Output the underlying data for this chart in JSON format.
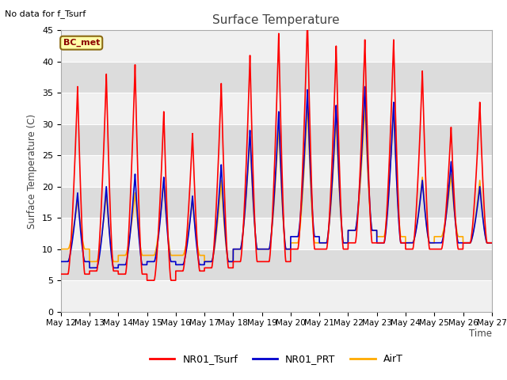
{
  "title": "Surface Temperature",
  "ylabel": "Surface Temperature (C)",
  "xlabel": "Time",
  "note": "No data for f_Tsurf",
  "annotation": "BC_met",
  "ylim": [
    0,
    45
  ],
  "yticks": [
    0,
    5,
    10,
    15,
    20,
    25,
    30,
    35,
    40,
    45
  ],
  "bg_color": "#dcdcdc",
  "plot_bg_color": "#dcdcdc",
  "series": {
    "NR01_Tsurf": {
      "color": "#ff0000",
      "lw": 1.2
    },
    "NR01_PRT": {
      "color": "#0000cc",
      "lw": 1.2
    },
    "AirT": {
      "color": "#ffaa00",
      "lw": 1.2
    }
  },
  "legend_colors": [
    "#ff0000",
    "#0000cc",
    "#ffaa00"
  ],
  "legend_labels": [
    "NR01_Tsurf",
    "NR01_PRT",
    "AirT"
  ],
  "xtick_labels": [
    "May 12",
    "May 13",
    "May 14",
    "May 15",
    "May 16",
    "May 17",
    "May 18",
    "May 19",
    "May 20",
    "May 21",
    "May 22",
    "May 23",
    "May 24",
    "May 25",
    "May 26",
    "May 27"
  ],
  "n_days": 15,
  "day_peaks_tsurf": [
    36,
    38,
    39.5,
    32,
    28.5,
    36.5,
    41,
    44.5,
    47,
    42.5,
    43.5,
    43.5,
    38.5,
    29.5,
    33.5
  ],
  "day_peaks_prt": [
    19,
    20,
    22,
    21.5,
    18.5,
    23.5,
    29,
    32,
    35.5,
    33,
    36,
    33.5,
    21,
    24,
    20
  ],
  "day_peaks_air": [
    18,
    19,
    19,
    21,
    18,
    21,
    28,
    30,
    33.5,
    31,
    33,
    33,
    21.5,
    22,
    21
  ],
  "day_mins_tsurf": [
    6,
    6.5,
    6,
    5,
    6.5,
    7,
    8,
    8,
    10,
    10,
    11,
    11,
    10,
    10,
    11
  ],
  "day_mins_prt": [
    8,
    7,
    7.5,
    8,
    7.5,
    8,
    10,
    10,
    12,
    11,
    13,
    11,
    11,
    11,
    11
  ],
  "day_mins_air": [
    10,
    8,
    9,
    9,
    9,
    8,
    10,
    10,
    11,
    11,
    13,
    12,
    11,
    12,
    11
  ]
}
